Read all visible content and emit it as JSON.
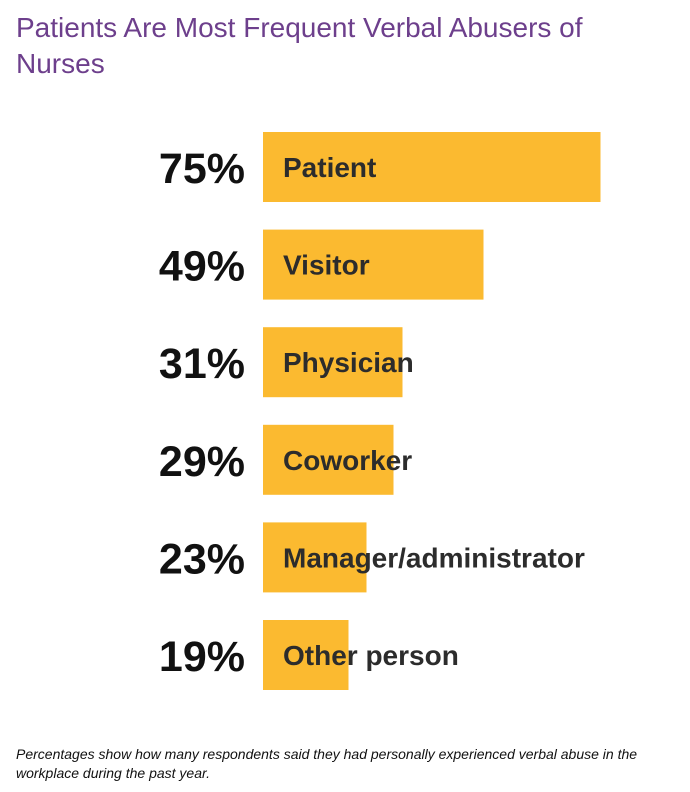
{
  "chart_data": {
    "type": "bar",
    "orientation": "horizontal",
    "title": "Patients Are Most Frequent Verbal Abusers of Nurses",
    "categories": [
      "Patient",
      "Visitor",
      "Physician",
      "Coworker",
      "Manager/administrator",
      "Other person"
    ],
    "values": [
      75,
      49,
      31,
      29,
      23,
      19
    ],
    "value_labels": [
      "75%",
      "49%",
      "31%",
      "29%",
      "23%",
      "19%"
    ],
    "unit": "%",
    "xlim": [
      0,
      100
    ],
    "grid": false,
    "legend": "none",
    "colors": {
      "bar": "#fbba30",
      "title": "#6d3f8c",
      "value_text": "#111111",
      "category_text": "#2c2c2c"
    }
  },
  "footnote": "Percentages show how many respondents said they had personally experienced verbal abuse in the workplace during the past year."
}
